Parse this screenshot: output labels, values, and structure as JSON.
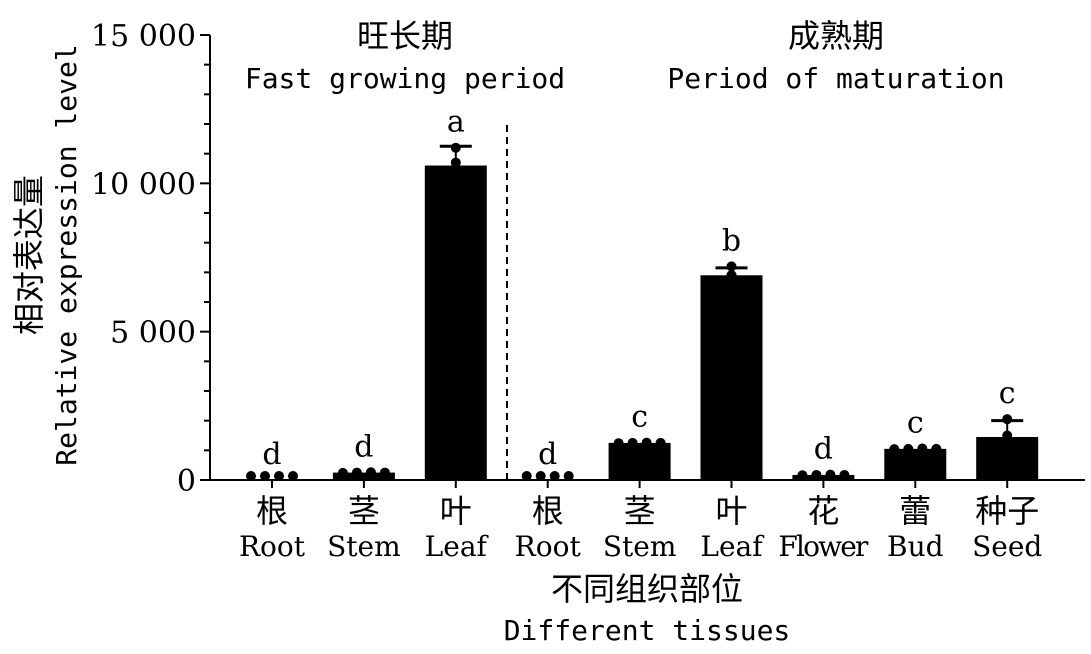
{
  "chart_data": {
    "type": "bar",
    "xlabel_zh": "不同组织部位",
    "xlabel_en": "Different tissues",
    "ylabel_zh": "相对表达量",
    "ylabel_en": "Relative expression level",
    "ylim": [
      0,
      15000
    ],
    "yticks": [
      0,
      5000,
      10000,
      15000
    ],
    "ytick_labels": [
      "0",
      "5 000",
      "10 000",
      "15 000"
    ],
    "periods": [
      {
        "zh": "旺长期",
        "en": "Fast growing period"
      },
      {
        "zh": "成熟期",
        "en": "Period of maturation"
      }
    ],
    "categories": [
      {
        "zh": "根",
        "en": "Root",
        "period": 0,
        "value": 0,
        "error": 0,
        "letter": "d",
        "points": [
          0,
          0,
          0,
          0
        ]
      },
      {
        "zh": "茎",
        "en": "Stem",
        "period": 0,
        "value": 250,
        "error": 0,
        "letter": "d",
        "points": [
          240,
          250,
          260,
          250
        ]
      },
      {
        "zh": "叶",
        "en": "Leaf",
        "period": 0,
        "value": 10600,
        "error": 650,
        "letter": "a",
        "points": [
          10700,
          11200
        ]
      },
      {
        "zh": "根",
        "en": "Root",
        "period": 1,
        "value": 0,
        "error": 0,
        "letter": "d",
        "points": [
          0,
          0,
          0,
          0
        ]
      },
      {
        "zh": "茎",
        "en": "Stem",
        "period": 1,
        "value": 1250,
        "error": 0,
        "letter": "c",
        "points": [
          1240,
          1250,
          1260,
          1250
        ]
      },
      {
        "zh": "叶",
        "en": "Leaf",
        "period": 1,
        "value": 6900,
        "error": 250,
        "letter": "b",
        "points": [
          6900,
          7200,
          6900
        ]
      },
      {
        "zh": "花",
        "en": "Flower",
        "period": 1,
        "value": 170,
        "error": 0,
        "letter": "d",
        "points": [
          160,
          170,
          180,
          170
        ]
      },
      {
        "zh": "蕾",
        "en": "Bud",
        "period": 1,
        "value": 1050,
        "error": 0,
        "letter": "c",
        "points": [
          1040,
          1050,
          1060,
          1050
        ]
      },
      {
        "zh": "种子",
        "en": "Seed",
        "period": 1,
        "value": 1450,
        "error": 550,
        "letter": "c",
        "points": [
          2050,
          1500
        ]
      }
    ]
  }
}
